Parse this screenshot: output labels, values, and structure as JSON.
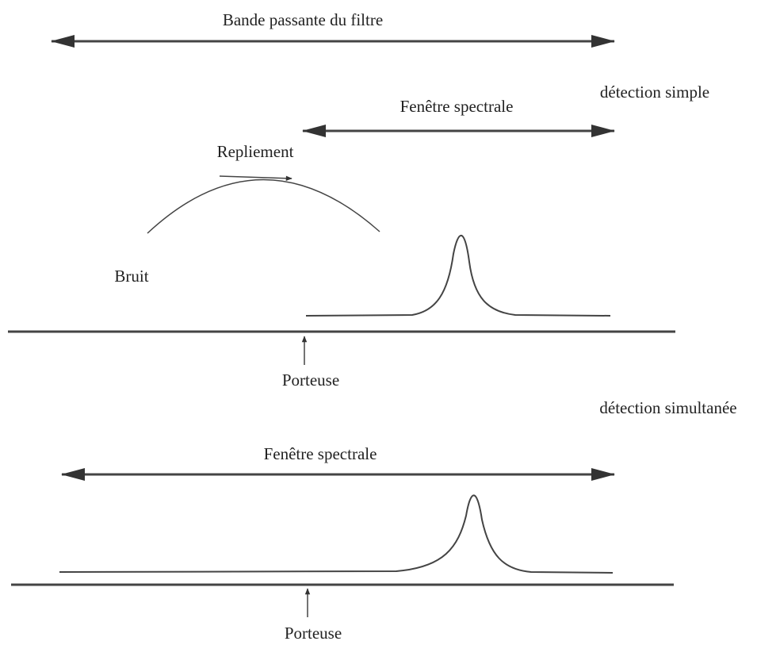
{
  "labels": {
    "filter_band": "Bande passante du filtre",
    "simple_detection": "détection simple",
    "spectral_window_1": "Fenêtre spectrale",
    "aliasing": "Repliement",
    "noise": "Bruit",
    "carrier_1": "Porteuse",
    "simultaneous_detection": "détection simultanée",
    "spectral_window_2": "Fenêtre spectrale",
    "carrier_2": "Porteuse"
  }
}
